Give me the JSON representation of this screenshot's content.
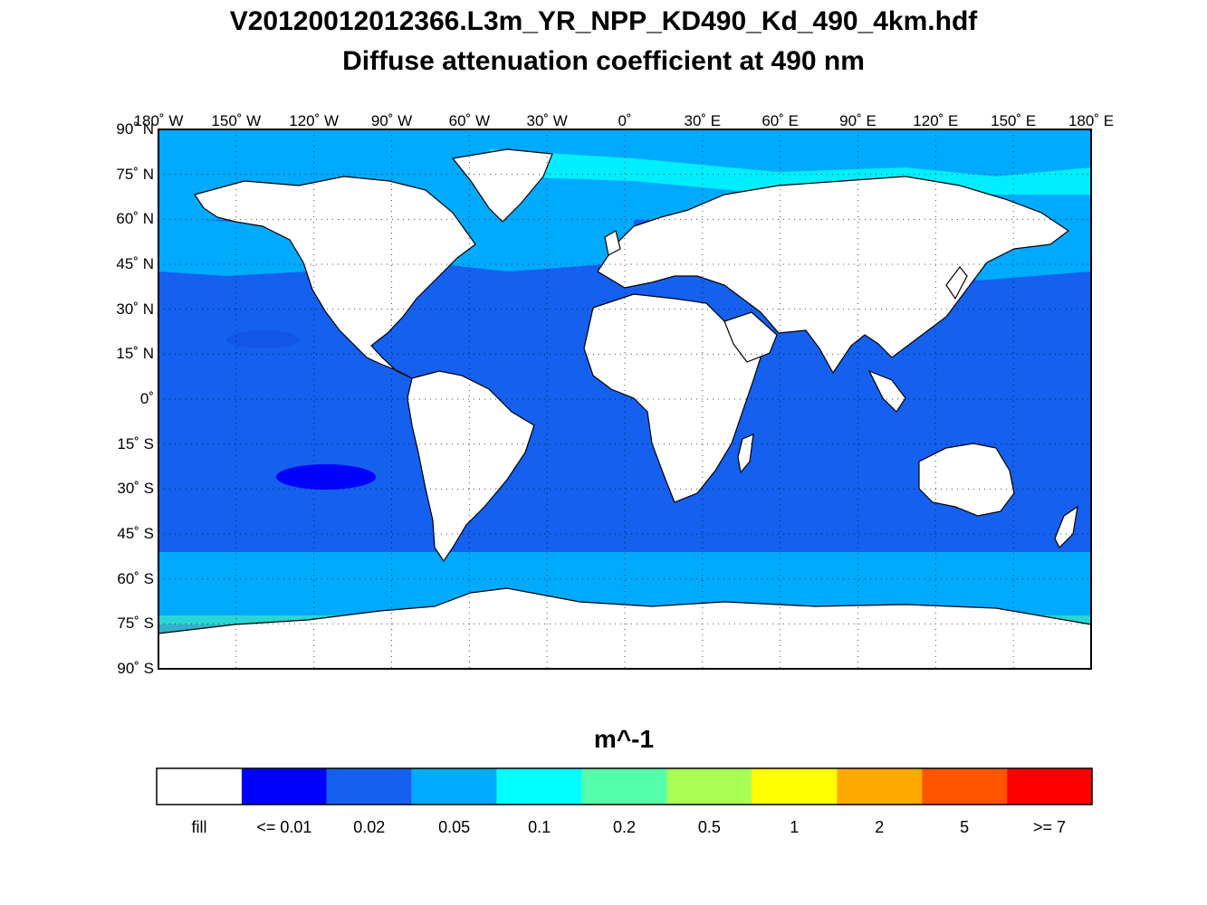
{
  "title_line1": "V20120012012366.L3m_YR_NPP_KD490_Kd_490_4km.hdf",
  "title_line2": "Diffuse attenuation coefficient at 490 nm",
  "units": "m^-1",
  "lon_ticks": [
    "180˚ W",
    "150˚ W",
    "120˚ W",
    "90˚ W",
    "60˚ W",
    "30˚ W",
    "0˚",
    "30˚ E",
    "60˚ E",
    "90˚ E",
    "120˚ E",
    "150˚ E",
    "180˚ E"
  ],
  "lat_ticks": [
    "90˚ N",
    "75˚ N",
    "60˚ N",
    "45˚ N",
    "30˚ N",
    "15˚ N",
    "0˚",
    "15˚ S",
    "30˚ S",
    "45˚ S",
    "60˚ S",
    "75˚ S",
    "90˚ S"
  ],
  "colorbar": [
    {
      "label": "fill",
      "color": "#ffffff"
    },
    {
      "label": "<= 0.01",
      "color": "#0000ff"
    },
    {
      "label": "0.02",
      "color": "#1560ee"
    },
    {
      "label": "0.05",
      "color": "#00aaff"
    },
    {
      "label": "0.1",
      "color": "#00ffff"
    },
    {
      "label": "0.2",
      "color": "#55ffaa"
    },
    {
      "label": "0.5",
      "color": "#aaff55"
    },
    {
      "label": "1",
      "color": "#ffff00"
    },
    {
      "label": "2",
      "color": "#ffaa00"
    },
    {
      "label": "5",
      "color": "#ff5500"
    },
    {
      "label": ">= 7",
      "color": "#ff0000"
    }
  ],
  "colors": {
    "ocean": "#1560ee",
    "coastal": "#00aaff",
    "shelf": "#00ffff",
    "land": "#ffffff"
  }
}
